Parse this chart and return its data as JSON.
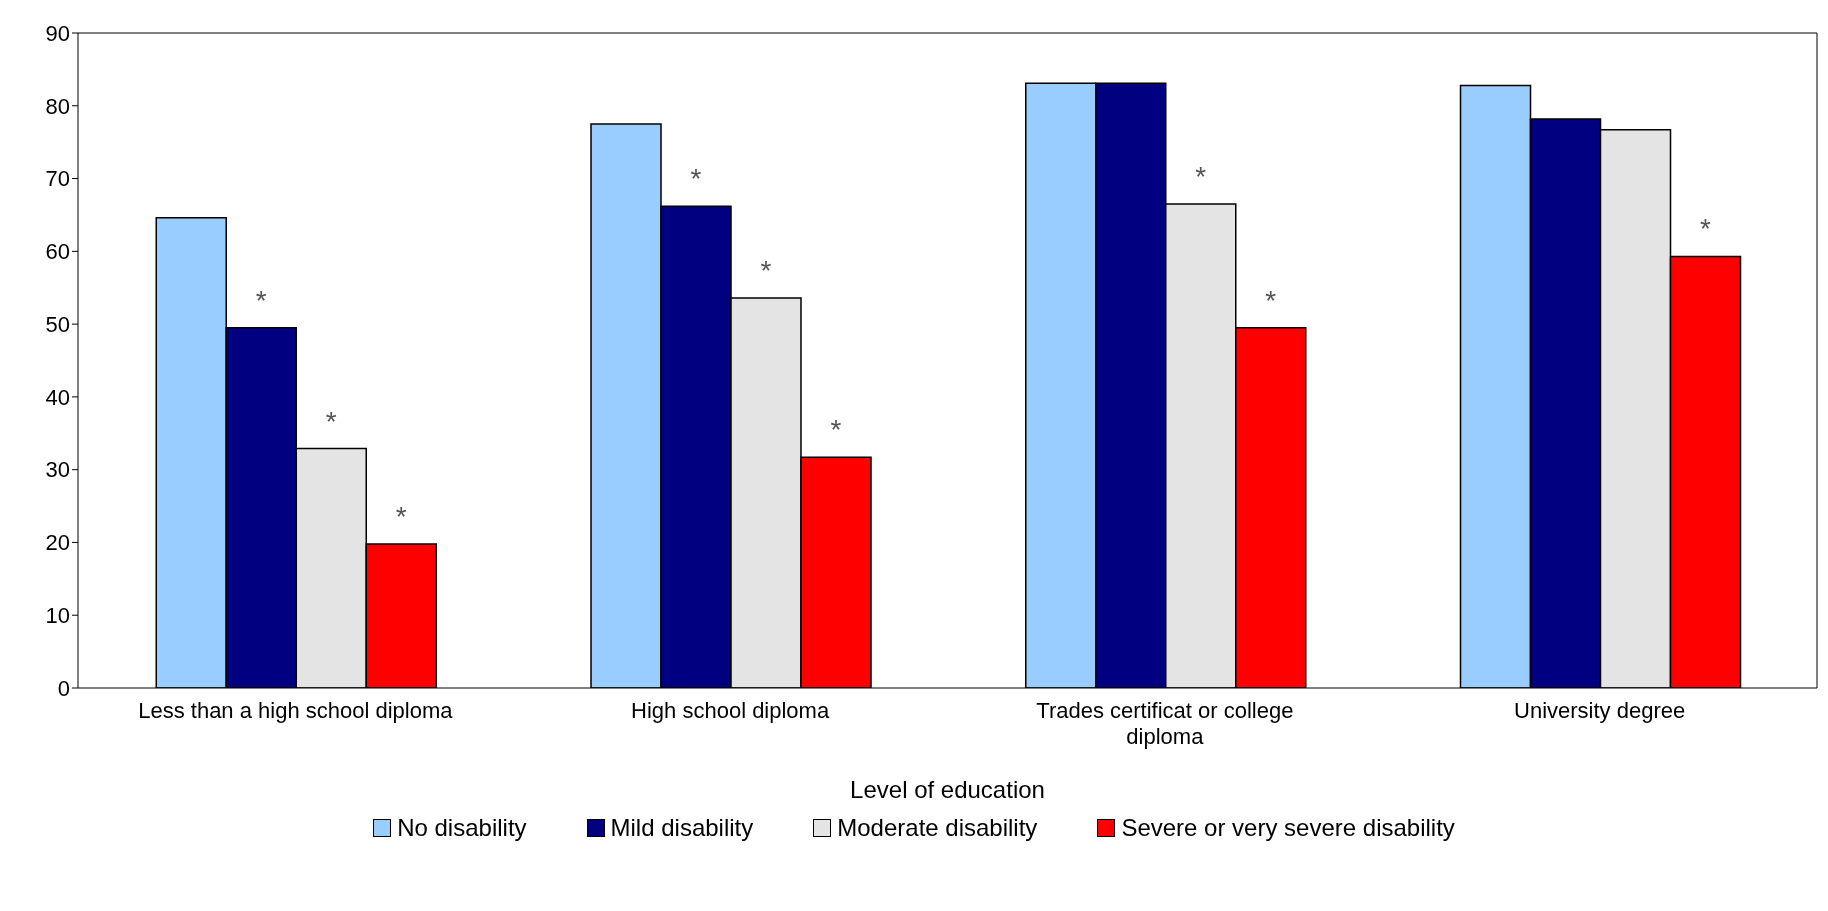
{
  "chart_data": {
    "type": "bar",
    "xlabel": "Level of education",
    "categories": [
      "Less than a high school diploma",
      "High school diploma",
      "Trades certificat or college diploma",
      "University degree"
    ],
    "series": [
      {
        "name": "No disability",
        "color": "#99ccff",
        "values": [
          64.6,
          77.5,
          83.1,
          82.8
        ]
      },
      {
        "name": "Mild disability",
        "color": "#000080",
        "values": [
          49.5,
          66.2,
          83.1,
          78.2
        ],
        "value_labels": [
          "*",
          "*",
          null,
          null
        ]
      },
      {
        "name": "Moderate disability",
        "color": "#e4e4e4",
        "values": [
          32.9,
          53.6,
          66.5,
          76.7
        ],
        "value_labels": [
          "*",
          "*",
          "*",
          null
        ]
      },
      {
        "name": "Severe or very severe disability",
        "color": "#ff0000",
        "values": [
          19.8,
          31.7,
          49.5,
          59.3
        ],
        "value_labels": [
          "*",
          "*",
          "*",
          "*"
        ]
      }
    ],
    "ylim": [
      0,
      90
    ],
    "yticks": [
      0,
      10,
      20,
      30,
      40,
      50,
      60,
      70,
      80,
      90
    ],
    "grid": false,
    "legend": "bottom"
  }
}
